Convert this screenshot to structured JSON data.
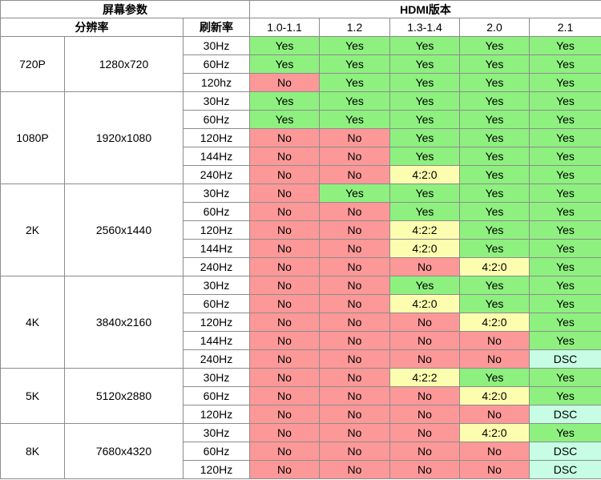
{
  "header": {
    "screen_params": "屏幕参数",
    "hdmi_version": "HDMI版本",
    "resolution": "分辨率",
    "refresh_rate": "刷新率",
    "versions": [
      "1.0-1.1",
      "1.2",
      "1.3-1.4",
      "2.0",
      "2.1"
    ]
  },
  "legend_colors": {
    "Yes": "#8ef07f",
    "No": "#fc9898",
    "4:2:0": "#fdfdb0",
    "4:2:2": "#fdfdb0",
    "DSC": "#c6fde4"
  },
  "groups": [
    {
      "name": "720P",
      "resolution": "1280x720",
      "rows": [
        {
          "rate": "30Hz",
          "values": [
            "Yes",
            "Yes",
            "Yes",
            "Yes",
            "Yes"
          ]
        },
        {
          "rate": "60Hz",
          "values": [
            "Yes",
            "Yes",
            "Yes",
            "Yes",
            "Yes"
          ]
        },
        {
          "rate": "120hz",
          "values": [
            "No",
            "Yes",
            "Yes",
            "Yes",
            "Yes"
          ]
        }
      ]
    },
    {
      "name": "1080P",
      "resolution": "1920x1080",
      "rows": [
        {
          "rate": "30Hz",
          "values": [
            "Yes",
            "Yes",
            "Yes",
            "Yes",
            "Yes"
          ]
        },
        {
          "rate": "60Hz",
          "values": [
            "Yes",
            "Yes",
            "Yes",
            "Yes",
            "Yes"
          ]
        },
        {
          "rate": "120Hz",
          "values": [
            "No",
            "No",
            "Yes",
            "Yes",
            "Yes"
          ]
        },
        {
          "rate": "144Hz",
          "values": [
            "No",
            "No",
            "Yes",
            "Yes",
            "Yes"
          ]
        },
        {
          "rate": "240Hz",
          "values": [
            "No",
            "No",
            "4:2:0",
            "Yes",
            "Yes"
          ]
        }
      ]
    },
    {
      "name": "2K",
      "resolution": "2560x1440",
      "rows": [
        {
          "rate": "30Hz",
          "values": [
            "No",
            "Yes",
            "Yes",
            "Yes",
            "Yes"
          ]
        },
        {
          "rate": "60Hz",
          "values": [
            "No",
            "No",
            "Yes",
            "Yes",
            "Yes"
          ]
        },
        {
          "rate": "120Hz",
          "values": [
            "No",
            "No",
            "4:2:2",
            "Yes",
            "Yes"
          ]
        },
        {
          "rate": "144Hz",
          "values": [
            "No",
            "No",
            "4:2:0",
            "Yes",
            "Yes"
          ]
        },
        {
          "rate": "240Hz",
          "values": [
            "No",
            "No",
            "No",
            "4:2:0",
            "Yes"
          ]
        }
      ]
    },
    {
      "name": "4K",
      "resolution": "3840x2160",
      "rows": [
        {
          "rate": "30Hz",
          "values": [
            "No",
            "No",
            "Yes",
            "Yes",
            "Yes"
          ]
        },
        {
          "rate": "60Hz",
          "values": [
            "No",
            "No",
            "4:2:0",
            "Yes",
            "Yes"
          ]
        },
        {
          "rate": "120Hz",
          "values": [
            "No",
            "No",
            "No",
            "4:2:0",
            "Yes"
          ]
        },
        {
          "rate": "144Hz",
          "values": [
            "No",
            "No",
            "No",
            "No",
            "Yes"
          ]
        },
        {
          "rate": "240Hz",
          "values": [
            "No",
            "No",
            "No",
            "No",
            "DSC"
          ]
        }
      ]
    },
    {
      "name": "5K",
      "resolution": "5120x2880",
      "rows": [
        {
          "rate": "30Hz",
          "values": [
            "No",
            "No",
            "4:2:2",
            "Yes",
            "Yes"
          ]
        },
        {
          "rate": "60Hz",
          "values": [
            "No",
            "No",
            "No",
            "4:2:0",
            "Yes"
          ]
        },
        {
          "rate": "120Hz",
          "values": [
            "No",
            "No",
            "No",
            "No",
            "DSC"
          ]
        }
      ]
    },
    {
      "name": "8K",
      "resolution": "7680x4320",
      "rows": [
        {
          "rate": "30Hz",
          "values": [
            "No",
            "No",
            "No",
            "4:2:0",
            "Yes"
          ]
        },
        {
          "rate": "60Hz",
          "values": [
            "No",
            "No",
            "No",
            "No",
            "DSC"
          ]
        },
        {
          "rate": "120Hz",
          "values": [
            "No",
            "No",
            "No",
            "No",
            "DSC"
          ]
        }
      ]
    }
  ]
}
